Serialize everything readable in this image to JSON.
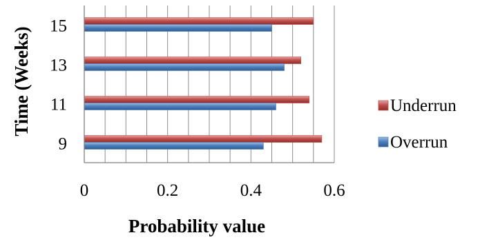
{
  "chart_data": {
    "type": "bar",
    "orientation": "horizontal",
    "categories": [
      "9",
      "11",
      "13",
      "15"
    ],
    "series": [
      {
        "name": "Overrun",
        "values": [
          0.43,
          0.46,
          0.48,
          0.45
        ],
        "color": "#4F81BD"
      },
      {
        "name": "Underrun",
        "values": [
          0.57,
          0.54,
          0.52,
          0.55
        ],
        "color": "#C0504D"
      }
    ],
    "title": "",
    "xlabel": "Probability value",
    "ylabel": "Time (Weeks)",
    "xlim": [
      0,
      0.6
    ],
    "xticks": [
      "0",
      "0.2",
      "0.4",
      "0.6"
    ],
    "grid": "vertical minor gridlines",
    "legend_position": "right",
    "legend_order": [
      "Underrun",
      "Overrun"
    ]
  }
}
